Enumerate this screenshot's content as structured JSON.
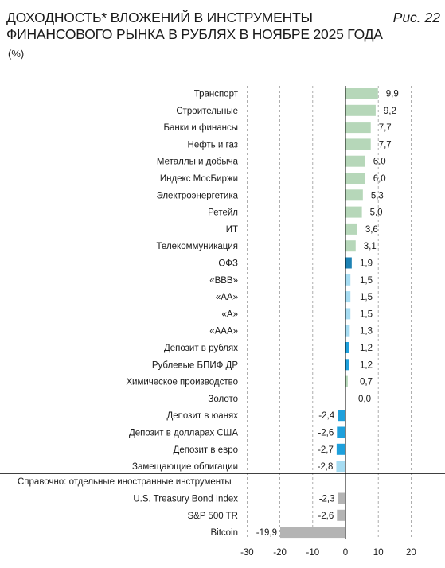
{
  "title_line1": "ДОХОДНОСТЬ* ВЛОЖЕНИЙ В ИНСТРУМЕНТЫ",
  "title_line2": "ФИНАНСОВОГО РЫНКА В РУБЛЯХ В НОЯБРЕ 2025 ГОДА",
  "unit": "(%)",
  "figure_label": "Рис. 22",
  "chart_data": {
    "type": "bar",
    "orientation": "horizontal",
    "xlim": [
      -30,
      20
    ],
    "x_ticks": [
      "-30",
      "-20",
      "-10",
      "0",
      "10",
      "20"
    ],
    "grid": "vertical dashed",
    "categories": [
      {
        "label": "Транспорт",
        "value": 9.9,
        "display": "9,9",
        "color": "#b6d7b9"
      },
      {
        "label": "Строительные",
        "value": 9.2,
        "display": "9,2",
        "color": "#b6d7b9"
      },
      {
        "label": "Банки и финансы",
        "value": 7.7,
        "display": "7,7",
        "color": "#b6d7b9"
      },
      {
        "label": "Нефть и газ",
        "value": 7.7,
        "display": "7,7",
        "color": "#b6d7b9"
      },
      {
        "label": "Металлы и добыча",
        "value": 6.0,
        "display": "6,0",
        "color": "#b6d7b9"
      },
      {
        "label": "Индекс МосБиржи",
        "value": 6.0,
        "display": "6,0",
        "color": "#b6d7b9"
      },
      {
        "label": "Электроэнергетика",
        "value": 5.3,
        "display": "5,3",
        "color": "#b6d7b9"
      },
      {
        "label": "Ретейл",
        "value": 5.0,
        "display": "5,0",
        "color": "#b6d7b9"
      },
      {
        "label": "ИТ",
        "value": 3.6,
        "display": "3,6",
        "color": "#b6d7b9"
      },
      {
        "label": "Телекоммуникация",
        "value": 3.1,
        "display": "3,1",
        "color": "#b6d7b9"
      },
      {
        "label": "ОФЗ",
        "value": 1.9,
        "display": "1,9",
        "color": "#1e82b4"
      },
      {
        "label": "«BBB»",
        "value": 1.5,
        "display": "1,5",
        "color": "#a6dcf2"
      },
      {
        "label": "«AA»",
        "value": 1.5,
        "display": "1,5",
        "color": "#a6dcf2"
      },
      {
        "label": "«A»",
        "value": 1.5,
        "display": "1,5",
        "color": "#a6dcf2"
      },
      {
        "label": "«AAA»",
        "value": 1.3,
        "display": "1,3",
        "color": "#a6dcf2"
      },
      {
        "label": "Депозит в рублях",
        "value": 1.2,
        "display": "1,2",
        "color": "#1ea0dc"
      },
      {
        "label": "Рублевые БПИФ ДР",
        "value": 1.2,
        "display": "1,2",
        "color": "#1ea0dc"
      },
      {
        "label": "Химическое производство",
        "value": 0.7,
        "display": "0,7",
        "color": "#b6d7b9"
      },
      {
        "label": "Золото",
        "value": 0.0,
        "display": "0,0",
        "color": "#b6d7b9"
      },
      {
        "label": "Депозит в юанях",
        "value": -2.4,
        "display": "-2,4",
        "color": "#1ea0dc"
      },
      {
        "label": "Депозит в долларах США",
        "value": -2.6,
        "display": "-2,6",
        "color": "#1ea0dc"
      },
      {
        "label": "Депозит в евро",
        "value": -2.7,
        "display": "-2,7",
        "color": "#1ea0dc"
      },
      {
        "label": "Замещающие облигации",
        "value": -2.8,
        "display": "-2,8",
        "color": "#a6dcf2"
      }
    ],
    "reference_section_label": "Справочно: отдельные иностранные инструменты",
    "reference_categories": [
      {
        "label": "U.S. Treasury Bond Index",
        "value": -2.3,
        "display": "-2,3",
        "color": "#b4b4b4"
      },
      {
        "label": "S&P 500 TR",
        "value": -2.6,
        "display": "-2,6",
        "color": "#b4b4b4"
      },
      {
        "label": "Bitcoin",
        "value": -19.9,
        "display": "-19,9",
        "color": "#b4b4b4"
      }
    ]
  }
}
